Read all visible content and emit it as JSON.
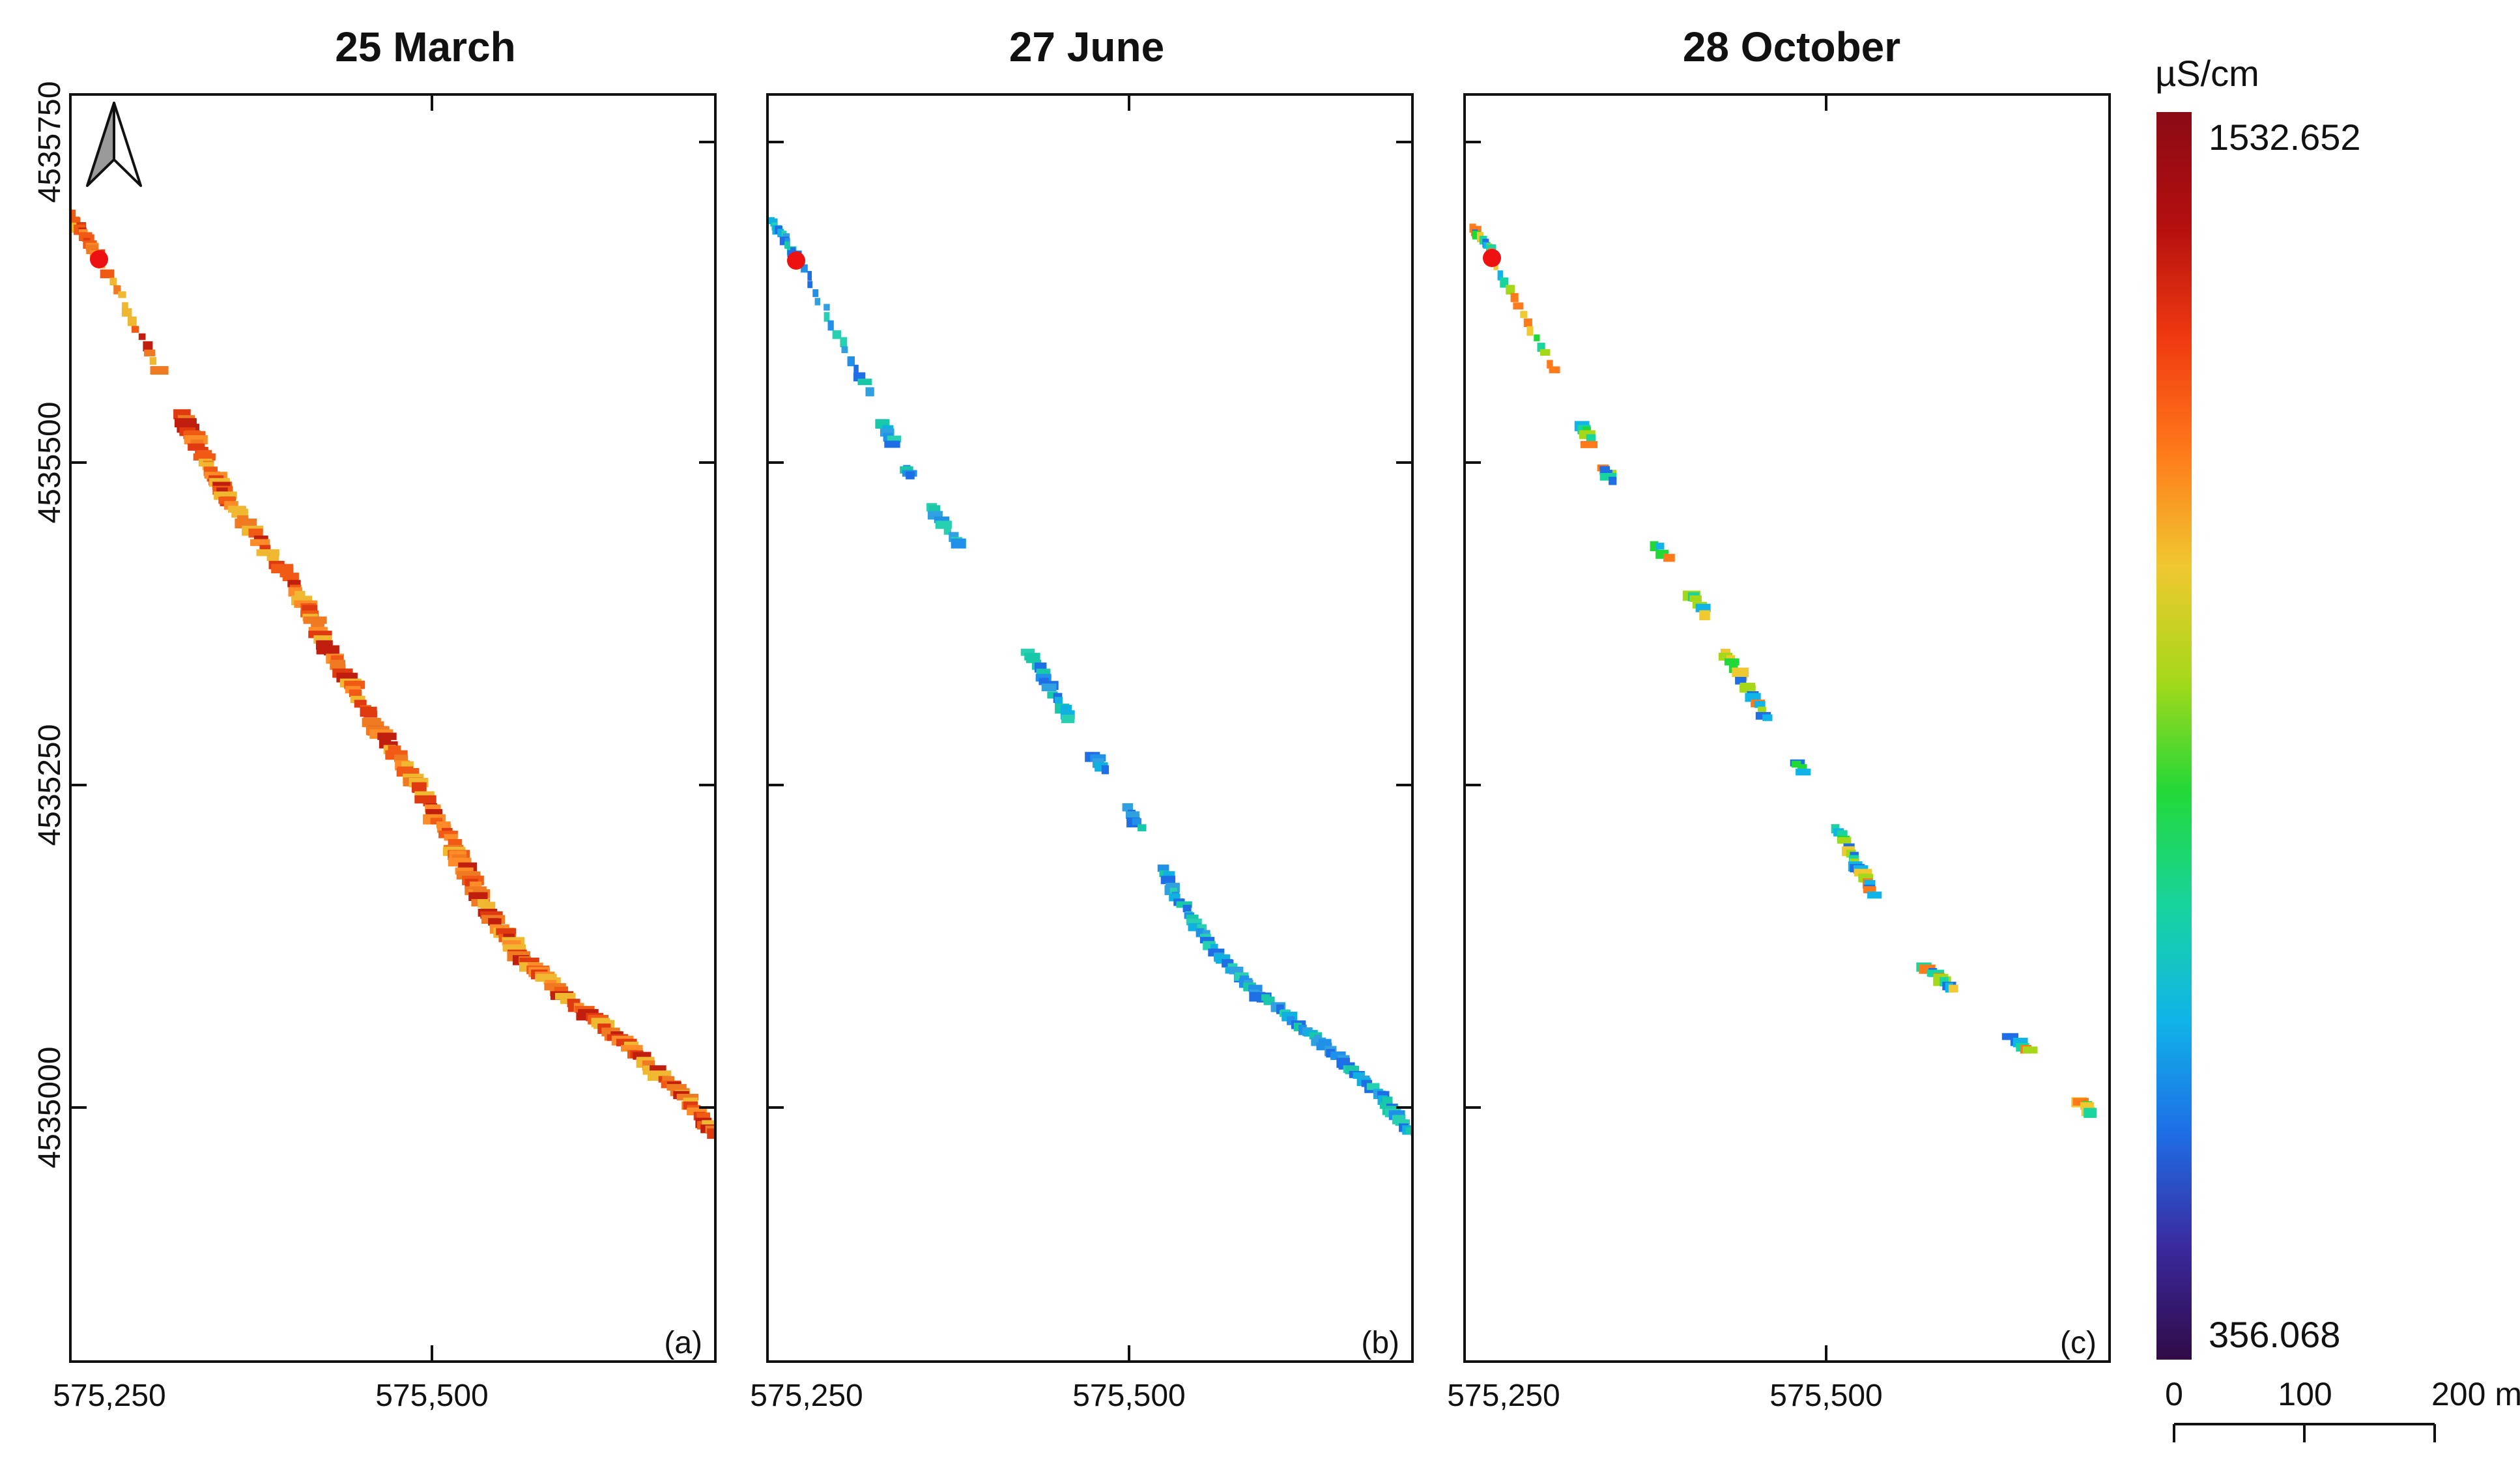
{
  "panels": [
    {
      "title": "25 March",
      "tag": "(a)",
      "scheme": "march",
      "x_ticks": [
        "575,250",
        "575,500"
      ],
      "y_ticks": [
        "4535750",
        "4535500",
        "4535250",
        "4535000"
      ],
      "north_arrow": true,
      "start_marker": "red-dot"
    },
    {
      "title": "27 June",
      "tag": "(b)",
      "scheme": "june",
      "x_ticks": [
        "575,250",
        "575,500"
      ],
      "y_ticks": [],
      "north_arrow": false,
      "start_marker": "red-dot"
    },
    {
      "title": "28 October",
      "tag": "(c)",
      "scheme": "october",
      "x_ticks": [
        "575,250",
        "575,500"
      ],
      "y_ticks": [],
      "north_arrow": false,
      "start_marker": "red-dot"
    }
  ],
  "legend": {
    "unit": "µS/cm",
    "max": "1532.652",
    "min": "356.068",
    "colors": [
      "#300a46",
      "#3a2a9e",
      "#1e6ee6",
      "#10b4e8",
      "#18d49e",
      "#22d838",
      "#a6d81a",
      "#f0c830",
      "#ff7a1a",
      "#f03a10",
      "#b40f0f",
      "#8a0a14"
    ]
  },
  "scale_bar": {
    "labels": [
      "0",
      "100",
      "200 m"
    ]
  },
  "colors": {
    "marker": "#ee1111",
    "frame": "#111111"
  },
  "icons": [
    "north-arrow-icon"
  ]
}
